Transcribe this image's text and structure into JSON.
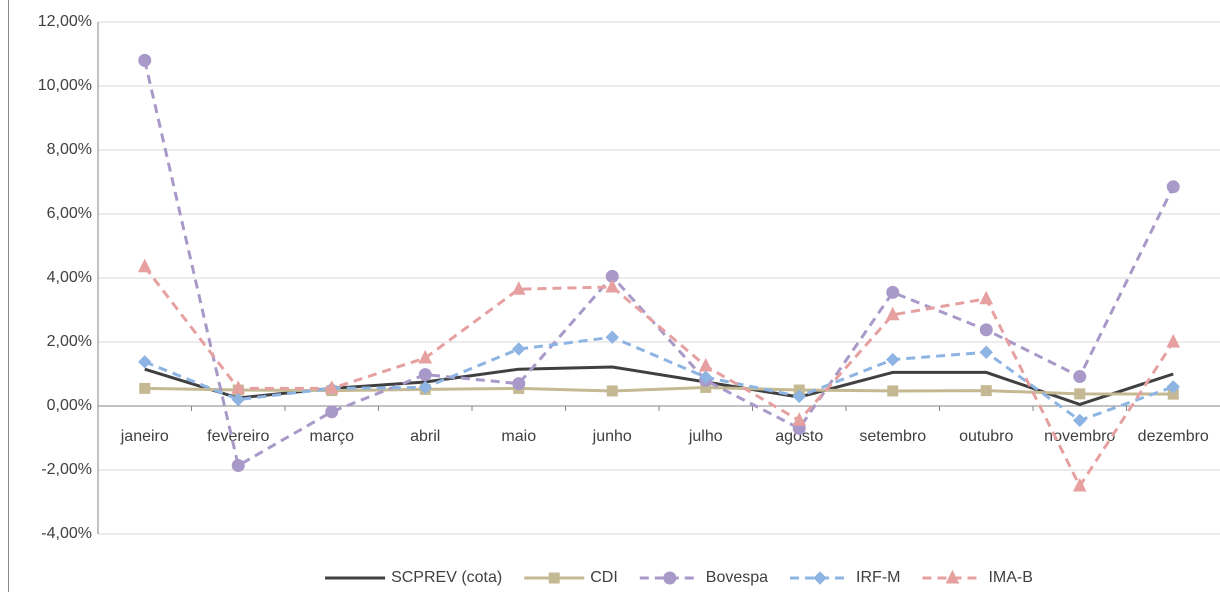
{
  "chart_data": {
    "type": "line",
    "categories": [
      "janeiro",
      "fevereiro",
      "março",
      "abril",
      "maio",
      "junho",
      "julho",
      "agosto",
      "setembro",
      "outubro",
      "novembro",
      "dezembro"
    ],
    "series": [
      {
        "name": "SCPREV (cota)",
        "color": "#404040",
        "marker": "none",
        "dashed": false,
        "values": [
          1.15,
          0.25,
          0.55,
          0.75,
          1.15,
          1.22,
          0.75,
          0.28,
          1.05,
          1.05,
          0.05,
          1.0
        ]
      },
      {
        "name": "CDI",
        "color": "#c4b993",
        "marker": "square",
        "dashed": false,
        "values": [
          0.55,
          0.5,
          0.48,
          0.52,
          0.55,
          0.47,
          0.58,
          0.5,
          0.47,
          0.48,
          0.38,
          0.37
        ]
      },
      {
        "name": "Bovespa",
        "color": "#a899c8",
        "marker": "circle",
        "dashed": true,
        "values": [
          10.8,
          -1.86,
          -0.18,
          0.98,
          0.7,
          4.05,
          0.8,
          -0.7,
          3.55,
          2.38,
          0.92,
          6.85
        ]
      },
      {
        "name": "IRF-M",
        "color": "#8db4e2",
        "marker": "diamond",
        "dashed": true,
        "values": [
          1.38,
          0.2,
          0.55,
          0.58,
          1.78,
          2.15,
          0.9,
          0.3,
          1.45,
          1.68,
          -0.45,
          0.6
        ]
      },
      {
        "name": "IMA-B",
        "color": "#e6a0a0",
        "marker": "triangle",
        "dashed": true,
        "values": [
          4.35,
          0.55,
          0.55,
          1.5,
          3.65,
          3.72,
          1.25,
          -0.45,
          2.85,
          3.35,
          -2.5,
          2.0
        ]
      }
    ],
    "ylim": [
      -4,
      12
    ],
    "yticks": [
      {
        "value": -4,
        "label": "-4,00%"
      },
      {
        "value": -2,
        "label": "-2,00%"
      },
      {
        "value": 0,
        "label": "0,00%"
      },
      {
        "value": 2,
        "label": "2,00%"
      },
      {
        "value": 4,
        "label": "4,00%"
      },
      {
        "value": 6,
        "label": "6,00%"
      },
      {
        "value": 8,
        "label": "8,00%"
      },
      {
        "value": 10,
        "label": "10,00%"
      },
      {
        "value": 12,
        "label": "12,00%"
      }
    ],
    "grid": true,
    "legend": "bottom"
  }
}
